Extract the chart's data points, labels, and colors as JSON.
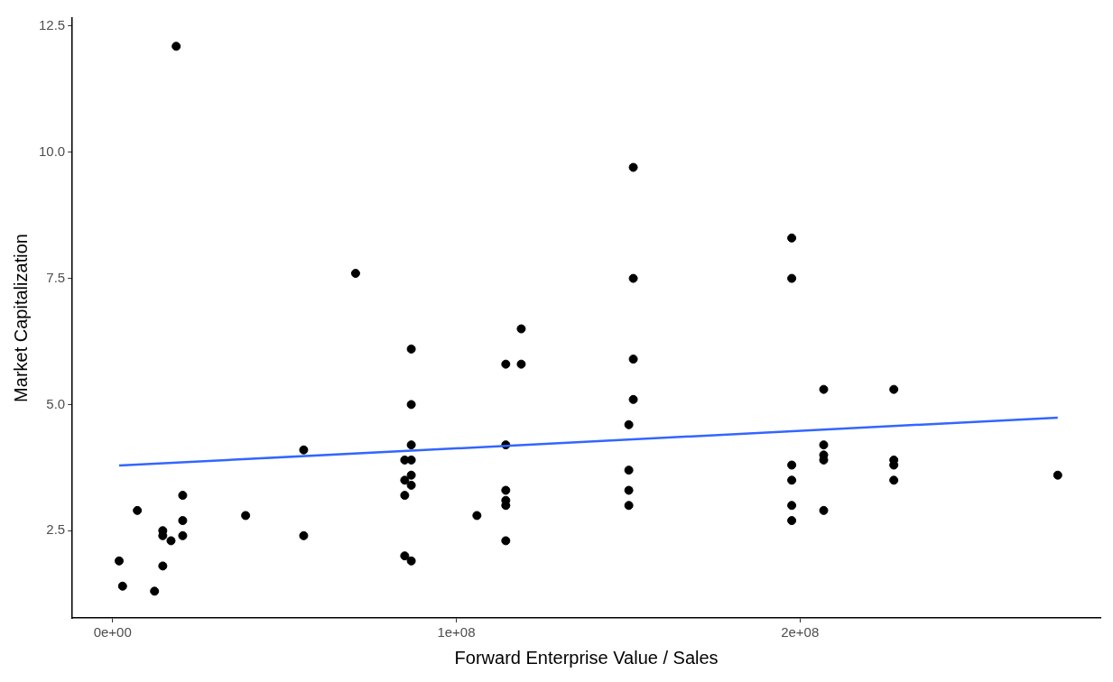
{
  "chart_data": {
    "type": "scatter",
    "xlabel": "Forward Enterprise Value / Sales",
    "ylabel": "Market Capitalization",
    "xlim": [
      -11700000,
      287400000
    ],
    "ylim": [
      0.77,
      12.66
    ],
    "xticks": [
      {
        "value": 0,
        "label": "0e+00"
      },
      {
        "value": 100000000,
        "label": "1e+08"
      },
      {
        "value": 200000000,
        "label": "2e+08"
      }
    ],
    "yticks": [
      2.5,
      {
        "value": 5,
        "label": "5.0"
      },
      {
        "value": 7.5,
        "label": "7.5"
      },
      {
        "value": 10,
        "label": "10.0"
      },
      {
        "value": 12.5,
        "label": "12.5"
      }
    ],
    "grid": false,
    "legend": false,
    "marker": "circle",
    "series": [
      {
        "type": "scatter",
        "color": "#000000",
        "x": [
          1900000,
          2900000,
          7200000,
          12200000,
          14600000,
          14600000,
          14600000,
          17000000,
          18500000,
          20400000,
          20400000,
          20400000,
          38700000,
          55600000,
          55600000,
          70700000,
          86900000,
          86900000,
          86900000,
          85000000,
          86900000,
          86900000,
          85000000,
          86900000,
          85000000,
          85000000,
          86900000,
          106000000,
          114400000,
          118900000,
          118900000,
          114400000,
          114400000,
          114400000,
          114400000,
          114400000,
          151500000,
          151500000,
          151500000,
          151500000,
          150200000,
          150200000,
          150200000,
          150200000,
          197600000,
          197600000,
          197600000,
          197600000,
          197600000,
          197600000,
          206900000,
          206900000,
          206900000,
          206900000,
          206900000,
          227300000,
          227300000,
          227300000,
          227300000,
          275000000
        ],
        "values": [
          1.9,
          1.4,
          2.9,
          1.3,
          2.5,
          2.4,
          1.8,
          2.3,
          12.1,
          3.2,
          2.7,
          2.4,
          2.8,
          4.1,
          2.4,
          7.6,
          6.1,
          5.0,
          4.2,
          3.9,
          3.9,
          3.6,
          3.5,
          3.4,
          3.2,
          2.0,
          1.9,
          2.8,
          5.8,
          6.5,
          5.8,
          4.2,
          3.3,
          3.1,
          3.0,
          2.3,
          9.7,
          7.5,
          5.9,
          5.1,
          4.6,
          3.7,
          3.3,
          3.0,
          8.3,
          7.5,
          3.8,
          3.5,
          3.0,
          2.7,
          5.3,
          4.2,
          4.0,
          3.9,
          2.9,
          5.3,
          3.9,
          3.8,
          3.5,
          3.6
        ]
      },
      {
        "type": "line",
        "color": "#3366ff",
        "marker": "none",
        "x": [
          1900000,
          275000000
        ],
        "values": [
          3.79,
          4.74
        ]
      }
    ]
  }
}
